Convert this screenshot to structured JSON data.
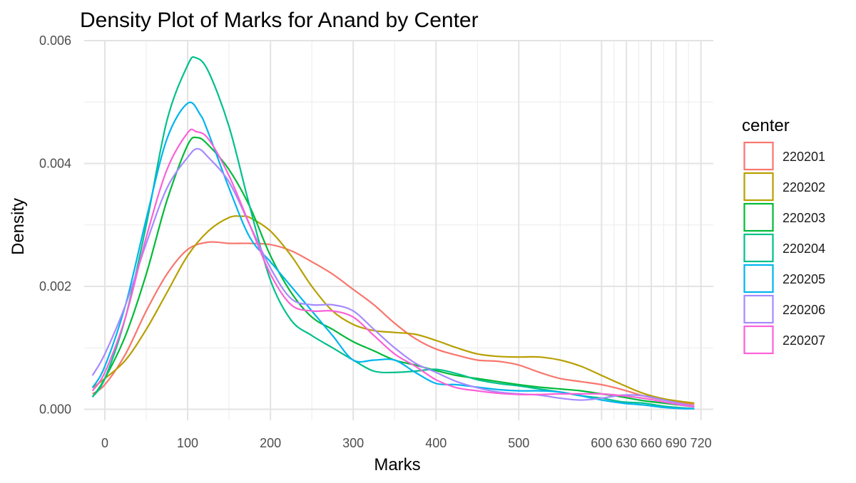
{
  "chart_data": {
    "type": "line",
    "title": "Density Plot of Marks for Anand by Center",
    "xlabel": "Marks",
    "ylabel": "Density",
    "xlim": [
      -25,
      735
    ],
    "ylim": [
      -0.00018,
      0.006
    ],
    "x_breaks": [
      0,
      100,
      200,
      300,
      400,
      500,
      600,
      630,
      660,
      690,
      720
    ],
    "x_tick_labels": [
      "0",
      "100",
      "200",
      "300",
      "400",
      "500",
      "600",
      "630",
      "660",
      "690",
      "720"
    ],
    "x_minor_breaks": [
      -50,
      50,
      150,
      250,
      350,
      450,
      550,
      615,
      645,
      675,
      705
    ],
    "y_breaks": [
      0,
      0.002,
      0.004,
      0.006
    ],
    "y_tick_labels": [
      "0.000",
      "0.002",
      "0.004",
      "0.006"
    ],
    "y_minor_breaks": [
      0.001,
      0.003,
      0.005
    ],
    "grid": true,
    "legend_title": "center",
    "legend_position": "right",
    "series": [
      {
        "name": "220201",
        "color": "#F8766D",
        "points": [
          [
            -15,
            0.00025
          ],
          [
            0,
            0.0004
          ],
          [
            25,
            0.0009
          ],
          [
            50,
            0.0016
          ],
          [
            75,
            0.0022
          ],
          [
            100,
            0.0026
          ],
          [
            125,
            0.00272
          ],
          [
            150,
            0.0027
          ],
          [
            175,
            0.0027
          ],
          [
            200,
            0.00268
          ],
          [
            225,
            0.00258
          ],
          [
            250,
            0.0024
          ],
          [
            275,
            0.0022
          ],
          [
            300,
            0.00195
          ],
          [
            325,
            0.0017
          ],
          [
            350,
            0.0014
          ],
          [
            375,
            0.00115
          ],
          [
            400,
            0.00098
          ],
          [
            425,
            0.00088
          ],
          [
            450,
            0.0008
          ],
          [
            475,
            0.00078
          ],
          [
            500,
            0.00072
          ],
          [
            525,
            0.0006
          ],
          [
            550,
            0.0005
          ],
          [
            575,
            0.00045
          ],
          [
            600,
            0.0004
          ],
          [
            625,
            0.00032
          ],
          [
            650,
            0.00022
          ],
          [
            675,
            0.00015
          ],
          [
            700,
            0.0001
          ],
          [
            712,
            8e-05
          ]
        ]
      },
      {
        "name": "220202",
        "color": "#B79F00",
        "points": [
          [
            -15,
            0.00035
          ],
          [
            0,
            0.0005
          ],
          [
            25,
            0.0008
          ],
          [
            50,
            0.0013
          ],
          [
            75,
            0.0019
          ],
          [
            100,
            0.0025
          ],
          [
            125,
            0.0029
          ],
          [
            150,
            0.00312
          ],
          [
            165,
            0.00314
          ],
          [
            175,
            0.00312
          ],
          [
            200,
            0.0029
          ],
          [
            225,
            0.0025
          ],
          [
            250,
            0.002
          ],
          [
            275,
            0.0016
          ],
          [
            300,
            0.00138
          ],
          [
            325,
            0.00128
          ],
          [
            350,
            0.00125
          ],
          [
            375,
            0.00122
          ],
          [
            400,
            0.00112
          ],
          [
            425,
            0.001
          ],
          [
            450,
            0.0009
          ],
          [
            475,
            0.00086
          ],
          [
            500,
            0.00085
          ],
          [
            525,
            0.00085
          ],
          [
            550,
            0.0008
          ],
          [
            575,
            0.0007
          ],
          [
            600,
            0.00055
          ],
          [
            625,
            0.0004
          ],
          [
            650,
            0.00026
          ],
          [
            675,
            0.00017
          ],
          [
            700,
            0.00012
          ],
          [
            712,
            0.0001
          ]
        ]
      },
      {
        "name": "220203",
        "color": "#00BA38",
        "points": [
          [
            -15,
            0.0002
          ],
          [
            0,
            0.0005
          ],
          [
            25,
            0.0012
          ],
          [
            50,
            0.0022
          ],
          [
            75,
            0.0034
          ],
          [
            100,
            0.0043
          ],
          [
            112,
            0.00442
          ],
          [
            125,
            0.0043
          ],
          [
            150,
            0.0039
          ],
          [
            175,
            0.0033
          ],
          [
            200,
            0.0025
          ],
          [
            225,
            0.0019
          ],
          [
            250,
            0.0015
          ],
          [
            275,
            0.0013
          ],
          [
            300,
            0.0011
          ],
          [
            325,
            0.00095
          ],
          [
            350,
            0.0008
          ],
          [
            375,
            0.00072
          ],
          [
            400,
            0.00063
          ],
          [
            425,
            0.00055
          ],
          [
            450,
            0.0005
          ],
          [
            475,
            0.00045
          ],
          [
            500,
            0.0004
          ],
          [
            525,
            0.00036
          ],
          [
            550,
            0.00033
          ],
          [
            575,
            0.0003
          ],
          [
            600,
            0.00025
          ],
          [
            625,
            0.0002
          ],
          [
            650,
            0.00014
          ],
          [
            675,
            0.0001
          ],
          [
            700,
            6e-05
          ],
          [
            712,
            4e-05
          ]
        ]
      },
      {
        "name": "220204",
        "color": "#00C08B",
        "points": [
          [
            -15,
            0.0002
          ],
          [
            0,
            0.0005
          ],
          [
            25,
            0.0015
          ],
          [
            50,
            0.003
          ],
          [
            75,
            0.0047
          ],
          [
            100,
            0.0056
          ],
          [
            110,
            0.00572
          ],
          [
            125,
            0.0055
          ],
          [
            150,
            0.0046
          ],
          [
            175,
            0.0033
          ],
          [
            200,
            0.0021
          ],
          [
            225,
            0.00145
          ],
          [
            250,
            0.0012
          ],
          [
            275,
            0.001
          ],
          [
            300,
            0.0008
          ],
          [
            325,
            0.00062
          ],
          [
            350,
            0.0006
          ],
          [
            375,
            0.00062
          ],
          [
            400,
            0.00065
          ],
          [
            425,
            0.00058
          ],
          [
            450,
            0.00048
          ],
          [
            475,
            0.00042
          ],
          [
            500,
            0.00038
          ],
          [
            525,
            0.00033
          ],
          [
            550,
            0.00028
          ],
          [
            575,
            0.00022
          ],
          [
            600,
            0.00018
          ],
          [
            625,
            0.00012
          ],
          [
            650,
            0.0001
          ],
          [
            675,
            5e-05
          ],
          [
            700,
            2e-05
          ],
          [
            712,
            1e-05
          ]
        ]
      },
      {
        "name": "220205",
        "color": "#00B4EF",
        "points": [
          [
            -15,
            0.00035
          ],
          [
            0,
            0.0007
          ],
          [
            25,
            0.0017
          ],
          [
            50,
            0.0031
          ],
          [
            75,
            0.0044
          ],
          [
            100,
            0.00498
          ],
          [
            115,
            0.0048
          ],
          [
            125,
            0.0045
          ],
          [
            150,
            0.0036
          ],
          [
            175,
            0.0028
          ],
          [
            200,
            0.0024
          ],
          [
            225,
            0.002
          ],
          [
            250,
            0.0016
          ],
          [
            275,
            0.0012
          ],
          [
            300,
            0.0008
          ],
          [
            325,
            0.0008
          ],
          [
            350,
            0.0008
          ],
          [
            375,
            0.0006
          ],
          [
            400,
            0.00042
          ],
          [
            425,
            0.0004
          ],
          [
            450,
            0.00036
          ],
          [
            475,
            0.00032
          ],
          [
            500,
            0.0003
          ],
          [
            525,
            0.0003
          ],
          [
            550,
            0.00028
          ],
          [
            575,
            0.00022
          ],
          [
            600,
            0.00015
          ],
          [
            625,
            0.0001
          ],
          [
            650,
            7e-05
          ],
          [
            675,
            3e-05
          ],
          [
            700,
            1e-05
          ],
          [
            712,
            1e-05
          ]
        ]
      },
      {
        "name": "220206",
        "color": "#A58AFF",
        "points": [
          [
            -15,
            0.00055
          ],
          [
            0,
            0.0009
          ],
          [
            25,
            0.0017
          ],
          [
            50,
            0.0027
          ],
          [
            75,
            0.0036
          ],
          [
            100,
            0.0041
          ],
          [
            112,
            0.00424
          ],
          [
            125,
            0.0041
          ],
          [
            150,
            0.0037
          ],
          [
            175,
            0.003
          ],
          [
            200,
            0.0023
          ],
          [
            225,
            0.0018
          ],
          [
            250,
            0.0017
          ],
          [
            275,
            0.0017
          ],
          [
            300,
            0.0016
          ],
          [
            325,
            0.0013
          ],
          [
            350,
            0.001
          ],
          [
            375,
            0.00075
          ],
          [
            400,
            0.0006
          ],
          [
            425,
            0.00045
          ],
          [
            450,
            0.00035
          ],
          [
            475,
            0.00028
          ],
          [
            500,
            0.00025
          ],
          [
            525,
            0.00023
          ],
          [
            550,
            0.00018
          ],
          [
            575,
            0.00015
          ],
          [
            600,
            0.00018
          ],
          [
            625,
            0.00023
          ],
          [
            650,
            0.00022
          ],
          [
            675,
            0.00015
          ],
          [
            700,
            8e-05
          ],
          [
            712,
            5e-05
          ]
        ]
      },
      {
        "name": "220207",
        "color": "#FB61D7",
        "points": [
          [
            -15,
            0.0003
          ],
          [
            0,
            0.0006
          ],
          [
            25,
            0.0015
          ],
          [
            50,
            0.0028
          ],
          [
            75,
            0.0039
          ],
          [
            100,
            0.0045
          ],
          [
            110,
            0.00452
          ],
          [
            125,
            0.0044
          ],
          [
            150,
            0.0038
          ],
          [
            175,
            0.003
          ],
          [
            200,
            0.0022
          ],
          [
            225,
            0.0017
          ],
          [
            250,
            0.0016
          ],
          [
            275,
            0.0016
          ],
          [
            300,
            0.0015
          ],
          [
            325,
            0.0012
          ],
          [
            350,
            0.0009
          ],
          [
            375,
            0.0007
          ],
          [
            400,
            0.00048
          ],
          [
            425,
            0.00035
          ],
          [
            450,
            0.0003
          ],
          [
            475,
            0.00026
          ],
          [
            500,
            0.00024
          ],
          [
            525,
            0.00024
          ],
          [
            550,
            0.00025
          ],
          [
            575,
            0.00025
          ],
          [
            600,
            0.00025
          ],
          [
            625,
            0.00022
          ],
          [
            650,
            0.00018
          ],
          [
            675,
            0.00012
          ],
          [
            700,
            6e-05
          ],
          [
            712,
            4e-05
          ]
        ]
      }
    ]
  }
}
